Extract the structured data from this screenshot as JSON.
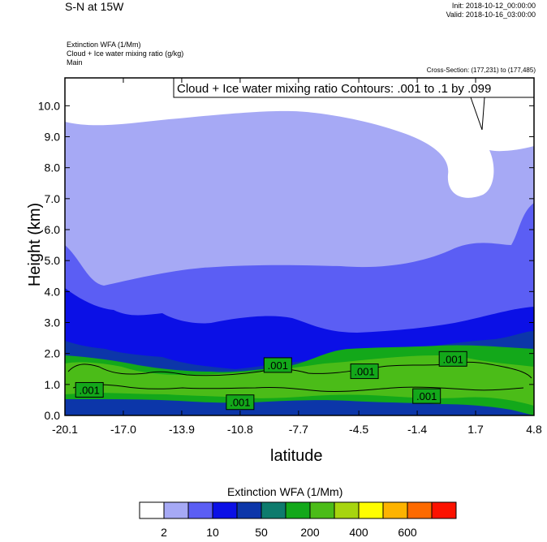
{
  "header": {
    "title": "S-N at 15W",
    "init": "Init: 2018-10-12_00:00:00",
    "valid": "Valid: 2018-10-16_03:00:00",
    "var1": "Extinction WFA   (1/Mm)",
    "var2": "Cloud + Ice water mixing ratio   (g/kg)",
    "var3": "Main",
    "cross_section": "Cross-Section: (177,231) to (177,485)"
  },
  "chart_data": {
    "type": "heatmap",
    "title": "S-N at 15W",
    "xlabel": "latitude",
    "ylabel": "Height (km)",
    "xlim": [
      -20.1,
      4.8
    ],
    "ylim": [
      0.0,
      10.9
    ],
    "x_ticks": [
      "-20.1",
      "-17.0",
      "-13.9",
      "-10.8",
      "-7.7",
      "-4.5",
      "-1.4",
      "1.7",
      "4.8"
    ],
    "y_ticks": [
      "0.0",
      "1.0",
      "2.0",
      "3.0",
      "4.0",
      "5.0",
      "6.0",
      "7.0",
      "8.0",
      "9.0",
      "10.0"
    ],
    "contour_title": "Cloud + Ice water mixing ratio Contours: .001 to .1 by .099",
    "contour_labels": [
      {
        "text": ".001",
        "lat": -18.8,
        "h": 0.8
      },
      {
        "text": ".001",
        "lat": -10.8,
        "h": 0.4
      },
      {
        "text": ".001",
        "lat": -8.8,
        "h": 1.6
      },
      {
        "text": ".001",
        "lat": -4.2,
        "h": 1.4
      },
      {
        "text": ".001",
        "lat": -0.9,
        "h": 0.6
      },
      {
        "text": ".001",
        "lat": 0.5,
        "h": 1.8
      }
    ],
    "colorbar": {
      "title": "Extinction WFA  (1/Mm)",
      "colors": [
        "#ffffff",
        "#a6a9f5",
        "#5b5ef4",
        "#0b10e6",
        "#0c36a9",
        "#0d7b6d",
        "#13a81a",
        "#4bbc18",
        "#a7d50f",
        "#fefd00",
        "#fdb300",
        "#fd6a00",
        "#fc1200"
      ],
      "labels": [
        {
          "text": "2",
          "edge": 1
        },
        {
          "text": "10",
          "edge": 3
        },
        {
          "text": "50",
          "edge": 5
        },
        {
          "text": "200",
          "edge": 7
        },
        {
          "text": "400",
          "edge": 9
        },
        {
          "text": "600",
          "edge": 11
        }
      ]
    },
    "fill_levels": {
      "c1": "#a6a9f5",
      "c2": "#5b5ef4",
      "c3": "#0b10e6",
      "c4": "#0c36a9",
      "c5": "#13a81a",
      "c6": "#4bbc18"
    }
  }
}
